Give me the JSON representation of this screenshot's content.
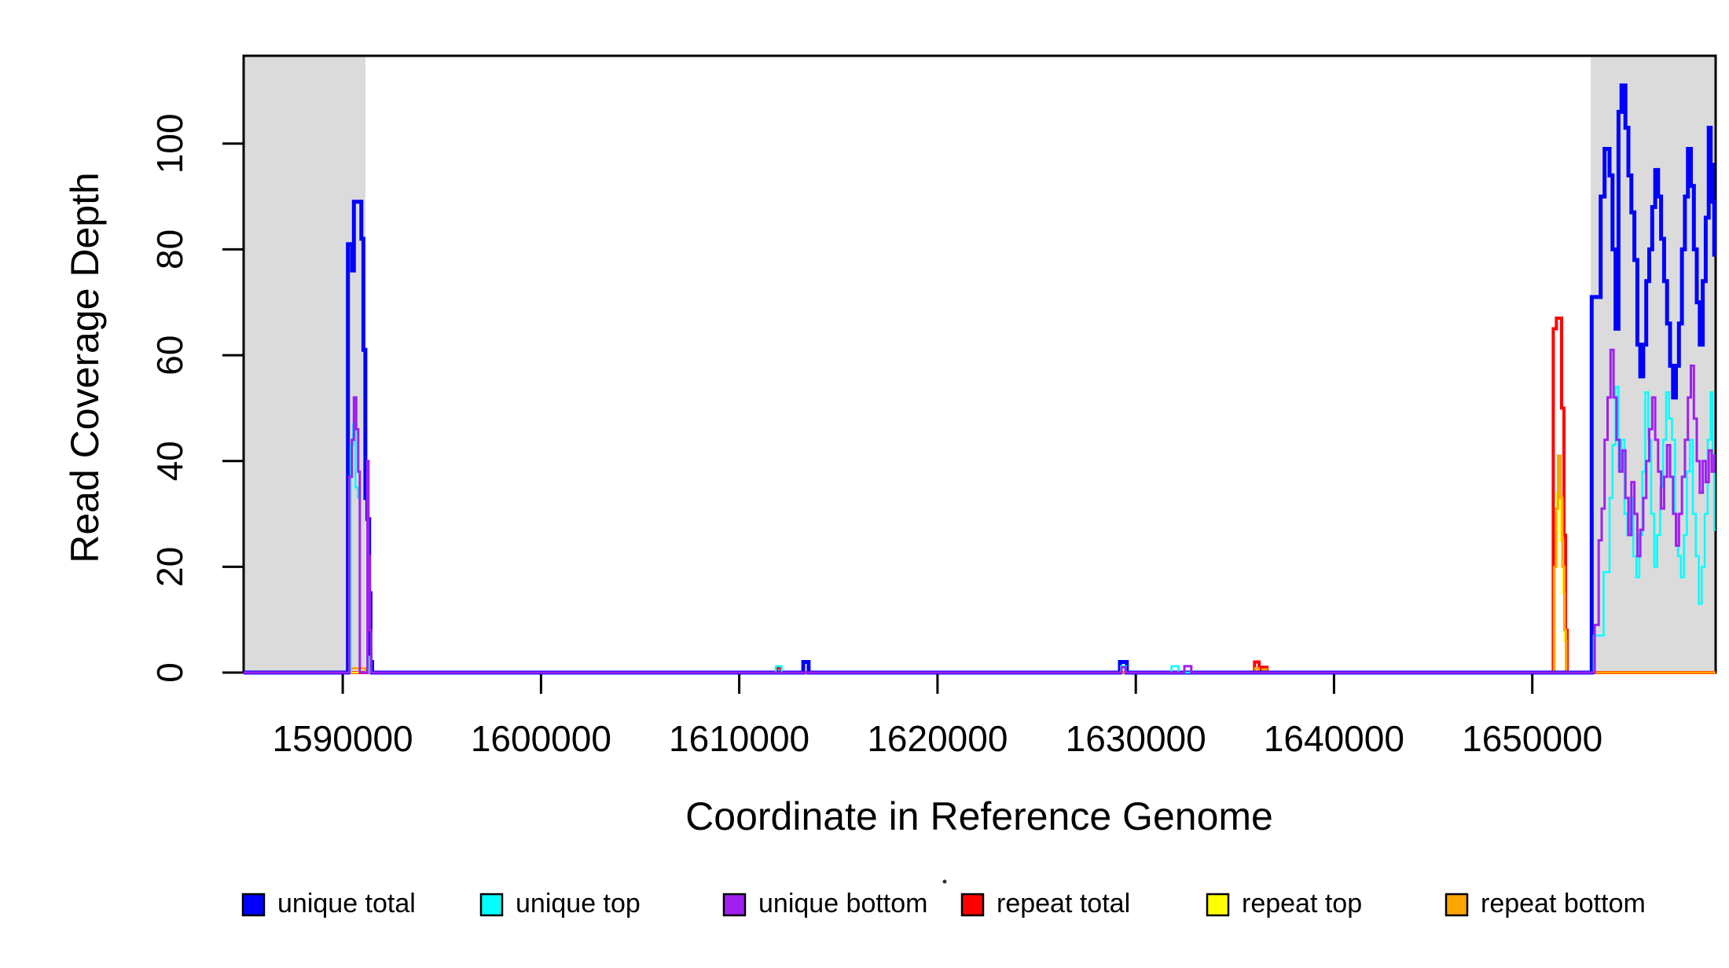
{
  "figure": {
    "background": "#ffffff",
    "plot_background": "#ffffff",
    "highlight_color": "#dbdbdb",
    "frame_color": "#000000"
  },
  "chart_data": {
    "type": "line",
    "subtype": "step-coverage",
    "title": "",
    "xlabel": "Coordinate in Reference Genome",
    "ylabel": "Read Coverage Depth",
    "xlim": [
      1585000,
      1659250
    ],
    "ylim": [
      0,
      116.6
    ],
    "grid": false,
    "legend_position": "bottom",
    "x_ticks": [
      1590000,
      1600000,
      1610000,
      1620000,
      1630000,
      1640000,
      1650000
    ],
    "x_tick_labels": [
      "1590000",
      "1600000",
      "1610000",
      "1620000",
      "1630000",
      "1640000",
      "1650000"
    ],
    "y_ticks": [
      0,
      20,
      40,
      60,
      80,
      100
    ],
    "y_tick_labels": [
      "0",
      "20",
      "40",
      "60",
      "80",
      "100"
    ],
    "highlight_regions": [
      {
        "name": "left-gray-region",
        "x0": 1585000,
        "x1": 1591150
      },
      {
        "name": "right-gray-region",
        "x0": 1652950,
        "x1": 1659250
      }
    ],
    "series": [
      {
        "name": "unique total",
        "color": "#0000ff",
        "line_width": 5,
        "points": [
          [
            1590260,
            81
          ],
          [
            1590470,
            76
          ],
          [
            1590560,
            89
          ],
          [
            1590940,
            82
          ],
          [
            1591040,
            61
          ],
          [
            1591140,
            33
          ],
          [
            1591240,
            29
          ],
          [
            1591330,
            15
          ],
          [
            1591400,
            2
          ],
          [
            1591480,
            0
          ],
          [
            1613230,
            2
          ],
          [
            1613500,
            0
          ],
          [
            1629200,
            2
          ],
          [
            1629550,
            0
          ],
          [
            1653000,
            71
          ],
          [
            1653450,
            90
          ],
          [
            1653650,
            99
          ],
          [
            1653900,
            94
          ],
          [
            1654050,
            80
          ],
          [
            1654200,
            65
          ],
          [
            1654350,
            106
          ],
          [
            1654500,
            111
          ],
          [
            1654700,
            103
          ],
          [
            1654850,
            94
          ],
          [
            1655000,
            87
          ],
          [
            1655150,
            78
          ],
          [
            1655300,
            62
          ],
          [
            1655450,
            56
          ],
          [
            1655600,
            62
          ],
          [
            1655750,
            74
          ],
          [
            1655900,
            80
          ],
          [
            1656050,
            88
          ],
          [
            1656200,
            95
          ],
          [
            1656350,
            90
          ],
          [
            1656500,
            82
          ],
          [
            1656650,
            74
          ],
          [
            1656800,
            66
          ],
          [
            1656950,
            58
          ],
          [
            1657100,
            52
          ],
          [
            1657250,
            58
          ],
          [
            1657400,
            66
          ],
          [
            1657550,
            80
          ],
          [
            1657700,
            90
          ],
          [
            1657850,
            99
          ],
          [
            1658000,
            92
          ],
          [
            1658150,
            80
          ],
          [
            1658300,
            70
          ],
          [
            1658450,
            62
          ],
          [
            1658600,
            74
          ],
          [
            1658750,
            86
          ],
          [
            1658900,
            103
          ],
          [
            1659000,
            96
          ],
          [
            1659100,
            89
          ],
          [
            1659180,
            79
          ]
        ]
      },
      {
        "name": "unique top",
        "color": "#00ffff",
        "line_width": 2.5,
        "points": [
          [
            1590400,
            43
          ],
          [
            1590520,
            47
          ],
          [
            1590640,
            35
          ],
          [
            1590760,
            33
          ],
          [
            1590850,
            0
          ],
          [
            1591330,
            3
          ],
          [
            1591420,
            0
          ],
          [
            1611840,
            1.2
          ],
          [
            1612140,
            0
          ],
          [
            1629250,
            1.2
          ],
          [
            1629500,
            0
          ],
          [
            1631800,
            1.2
          ],
          [
            1632150,
            0
          ],
          [
            1653100,
            7
          ],
          [
            1653600,
            19
          ],
          [
            1653900,
            33
          ],
          [
            1654050,
            43
          ],
          [
            1654200,
            54
          ],
          [
            1654350,
            38
          ],
          [
            1654500,
            44
          ],
          [
            1654650,
            30
          ],
          [
            1654800,
            26
          ],
          [
            1654950,
            33
          ],
          [
            1655100,
            22
          ],
          [
            1655250,
            18
          ],
          [
            1655400,
            26
          ],
          [
            1655550,
            38
          ],
          [
            1655700,
            53
          ],
          [
            1655850,
            44
          ],
          [
            1656000,
            30
          ],
          [
            1656150,
            20
          ],
          [
            1656300,
            26
          ],
          [
            1656450,
            35
          ],
          [
            1656600,
            44
          ],
          [
            1656750,
            53
          ],
          [
            1656900,
            48
          ],
          [
            1657050,
            44
          ],
          [
            1657200,
            30
          ],
          [
            1657350,
            22
          ],
          [
            1657500,
            18
          ],
          [
            1657650,
            26
          ],
          [
            1657800,
            38
          ],
          [
            1657950,
            44
          ],
          [
            1658100,
            30
          ],
          [
            1658250,
            22
          ],
          [
            1658400,
            13
          ],
          [
            1658550,
            20
          ],
          [
            1658700,
            30
          ],
          [
            1658850,
            44
          ],
          [
            1659000,
            53
          ],
          [
            1659100,
            41
          ],
          [
            1659180,
            27
          ]
        ]
      },
      {
        "name": "unique bottom",
        "color": "#a020f0",
        "line_width": 3,
        "points": [
          [
            1590330,
            37
          ],
          [
            1590460,
            44
          ],
          [
            1590560,
            52
          ],
          [
            1590680,
            46
          ],
          [
            1590780,
            38
          ],
          [
            1590860,
            0
          ],
          [
            1591240,
            40
          ],
          [
            1591300,
            22
          ],
          [
            1591360,
            8
          ],
          [
            1591430,
            0
          ],
          [
            1629280,
            1
          ],
          [
            1629480,
            0
          ],
          [
            1632450,
            1.2
          ],
          [
            1632800,
            0
          ],
          [
            1653150,
            9
          ],
          [
            1653350,
            25
          ],
          [
            1653500,
            31
          ],
          [
            1653650,
            44
          ],
          [
            1653800,
            52
          ],
          [
            1653950,
            61
          ],
          [
            1654100,
            52
          ],
          [
            1654250,
            44
          ],
          [
            1654400,
            38
          ],
          [
            1654550,
            42
          ],
          [
            1654700,
            33
          ],
          [
            1654850,
            26
          ],
          [
            1655000,
            36
          ],
          [
            1655150,
            30
          ],
          [
            1655300,
            22
          ],
          [
            1655450,
            27
          ],
          [
            1655600,
            33
          ],
          [
            1655750,
            40
          ],
          [
            1655900,
            46
          ],
          [
            1656050,
            52
          ],
          [
            1656200,
            44
          ],
          [
            1656350,
            38
          ],
          [
            1656500,
            31
          ],
          [
            1656650,
            37
          ],
          [
            1656800,
            43
          ],
          [
            1656950,
            37
          ],
          [
            1657100,
            30
          ],
          [
            1657250,
            24
          ],
          [
            1657400,
            30
          ],
          [
            1657550,
            37
          ],
          [
            1657700,
            44
          ],
          [
            1657850,
            52
          ],
          [
            1658000,
            58
          ],
          [
            1658150,
            48
          ],
          [
            1658300,
            40
          ],
          [
            1658450,
            34
          ],
          [
            1658600,
            40
          ],
          [
            1658750,
            36
          ],
          [
            1658900,
            42
          ],
          [
            1659050,
            38
          ],
          [
            1659180,
            41
          ]
        ]
      },
      {
        "name": "repeat total",
        "color": "#ff0000",
        "line_width": 4,
        "points": [
          [
            1611880,
            0.9
          ],
          [
            1612100,
            0
          ],
          [
            1635990,
            2
          ],
          [
            1636220,
            0
          ],
          [
            1636380,
            1
          ],
          [
            1636620,
            0
          ],
          [
            1651060,
            65
          ],
          [
            1651220,
            67
          ],
          [
            1651480,
            50
          ],
          [
            1651600,
            26
          ],
          [
            1651680,
            8
          ],
          [
            1651760,
            0
          ]
        ]
      },
      {
        "name": "repeat top",
        "color": "#ffff00",
        "line_width": 2.5,
        "points": [
          [
            1651150,
            20
          ],
          [
            1651260,
            34
          ],
          [
            1651450,
            25
          ],
          [
            1651560,
            15
          ],
          [
            1651640,
            6
          ],
          [
            1651720,
            0
          ]
        ]
      },
      {
        "name": "repeat bottom",
        "color": "#ffa500",
        "line_width": 3,
        "points": [
          [
            1590380,
            0.8
          ],
          [
            1591150,
            0
          ],
          [
            1636020,
            0.8
          ],
          [
            1636200,
            0
          ],
          [
            1636400,
            0.6
          ],
          [
            1636600,
            0
          ],
          [
            1651100,
            20
          ],
          [
            1651200,
            31
          ],
          [
            1651300,
            41
          ],
          [
            1651420,
            33
          ],
          [
            1651520,
            20
          ],
          [
            1651620,
            8
          ],
          [
            1651700,
            0
          ]
        ]
      }
    ],
    "draw_order": [
      3,
      4,
      5,
      0,
      1,
      2
    ],
    "baseline_value": 0
  }
}
